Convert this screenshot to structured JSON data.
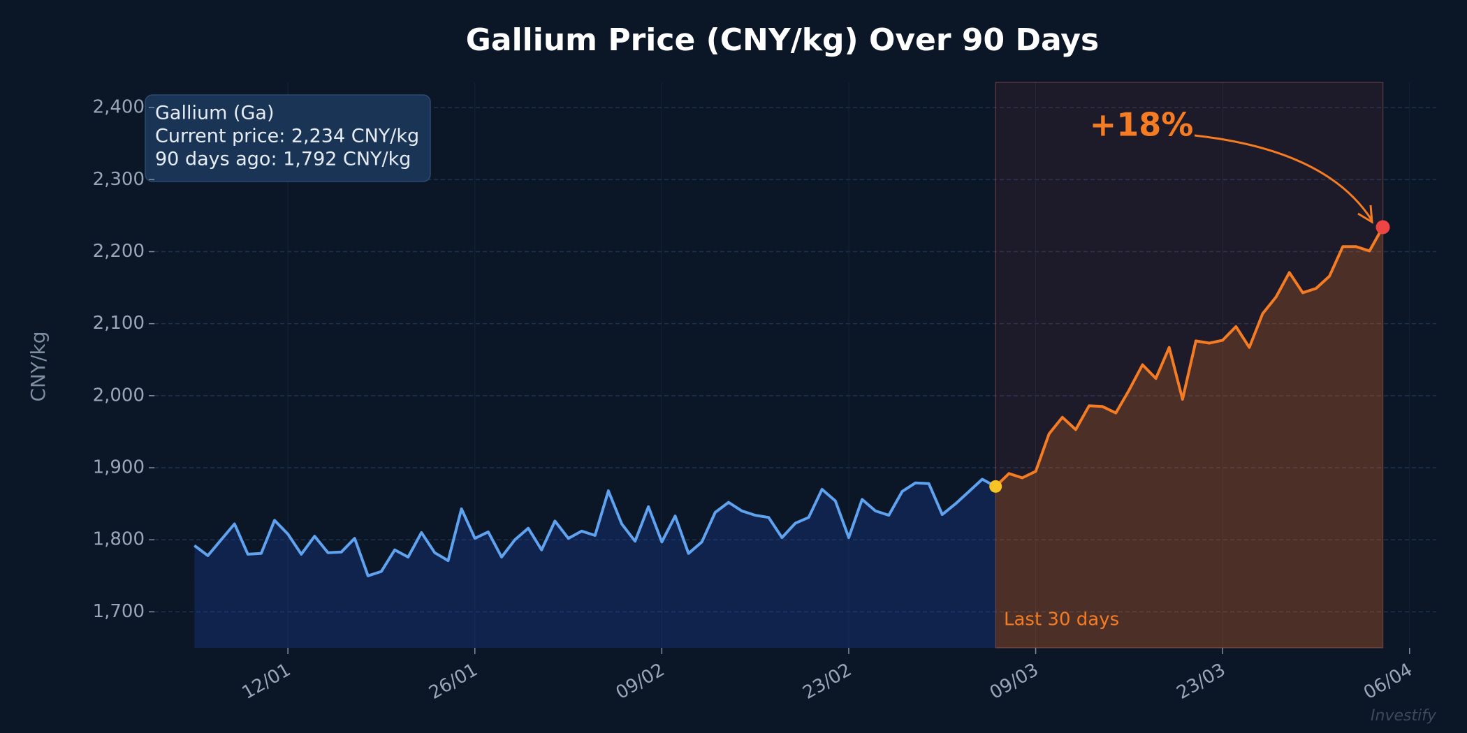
{
  "chart_data": {
    "type": "line",
    "title": "Gallium Price (CNY/kg) Over 90 Days",
    "y_label": "CNY/kg",
    "info_box": [
      "Gallium (Ga)",
      "Current price: 2,234 CNY/kg",
      "90 days ago: 1,792 CNY/kg"
    ],
    "annotation": "+18%",
    "watermark": "Investify",
    "highlight": {
      "label": "Last 30 days",
      "start": "06/03",
      "color": "#f57c22"
    },
    "start_marker_color": "#f7c325",
    "end_marker_color": "#ef4444",
    "grid": true,
    "x": [
      "05/01",
      "06/01",
      "07/01",
      "08/01",
      "09/01",
      "10/01",
      "11/01",
      "12/01",
      "13/01",
      "14/01",
      "15/01",
      "16/01",
      "17/01",
      "18/01",
      "19/01",
      "20/01",
      "21/01",
      "22/01",
      "23/01",
      "24/01",
      "25/01",
      "26/01",
      "27/01",
      "28/01",
      "29/01",
      "30/01",
      "31/01",
      "01/02",
      "02/02",
      "03/02",
      "04/02",
      "05/02",
      "06/02",
      "07/02",
      "08/02",
      "09/02",
      "10/02",
      "11/02",
      "12/02",
      "13/02",
      "14/02",
      "15/02",
      "16/02",
      "17/02",
      "18/02",
      "19/02",
      "20/02",
      "21/02",
      "22/02",
      "23/02",
      "24/02",
      "25/02",
      "26/02",
      "27/02",
      "28/02",
      "01/03",
      "02/03",
      "03/03",
      "04/03",
      "05/03",
      "06/03",
      "07/03",
      "08/03",
      "09/03",
      "10/03",
      "11/03",
      "12/03",
      "13/03",
      "14/03",
      "15/03",
      "16/03",
      "17/03",
      "18/03",
      "19/03",
      "20/03",
      "21/03",
      "22/03",
      "23/03",
      "24/03",
      "25/03",
      "26/03",
      "27/03",
      "28/03",
      "29/03",
      "30/03",
      "31/03",
      "01/04",
      "02/04",
      "03/04",
      "04/04"
    ],
    "series": [
      {
        "color": "#5fa3f0",
        "values": [
          1792,
          1778,
          1800,
          1822,
          1780,
          1781,
          1827,
          1808,
          1780,
          1805,
          1782,
          1783,
          1802,
          1750,
          1756,
          1786,
          1776,
          1810,
          1782,
          1771,
          1843,
          1802,
          1811,
          1776,
          1800,
          1816,
          1786,
          1826,
          1802,
          1812,
          1806,
          1868,
          1822,
          1798,
          1846,
          1797,
          1833,
          1781,
          1797,
          1838,
          1852,
          1840,
          1834,
          1831,
          1803,
          1823,
          1831,
          1870,
          1854,
          1803,
          1856,
          1840,
          1834,
          1867,
          1879,
          1878,
          1835,
          1850,
          1867,
          1884,
          1874,
          1892,
          1886,
          1895,
          1947,
          1970,
          1953,
          1986,
          1985,
          1976,
          2008,
          2043,
          2024,
          2067,
          1995,
          2076,
          2073,
          2077,
          2096,
          2067,
          2114,
          2137,
          2171,
          2143,
          2149,
          2166,
          2207,
          2207,
          2201,
          2234
        ]
      }
    ],
    "xlim": [
      "02/01",
      "08/04"
    ],
    "xticks": [
      "12/01",
      "26/01",
      "09/02",
      "23/02",
      "09/03",
      "23/03",
      "06/04"
    ],
    "ylim": [
      1650,
      2435
    ],
    "yticks": [
      {
        "value": 1700,
        "label": "1,700"
      },
      {
        "value": 1800,
        "label": "1,800"
      },
      {
        "value": 1900,
        "label": "1,900"
      },
      {
        "value": 2000,
        "label": "2,000"
      },
      {
        "value": 2100,
        "label": "2,100"
      },
      {
        "value": 2200,
        "label": "2,200"
      },
      {
        "value": 2300,
        "label": "2,300"
      },
      {
        "value": 2400,
        "label": "2,400"
      }
    ]
  }
}
